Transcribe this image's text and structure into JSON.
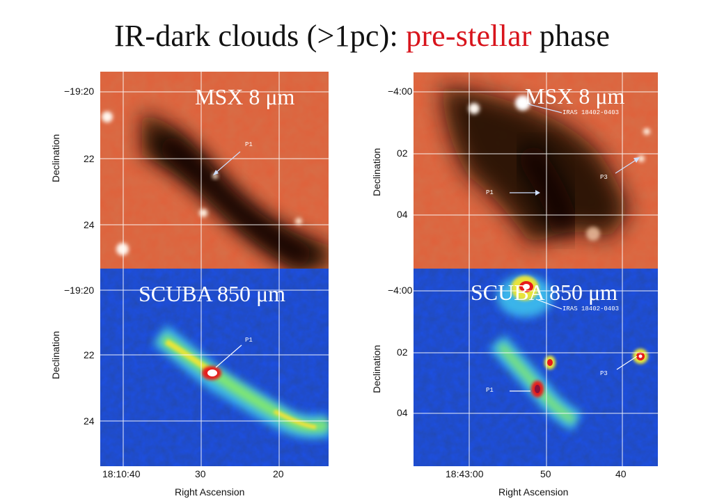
{
  "title": {
    "main": "IR-dark clouds (>1pc): ",
    "highlight": "pre-stellar",
    "tail": " phase"
  },
  "colors": {
    "title_highlight": "#d8141c",
    "ir_base": "#e0603a",
    "ir_dark": "#1a0800",
    "submm_base": "#1c4fe6",
    "submm_dark": "#05103a",
    "grid": "#ffffff"
  },
  "left": {
    "y_axis_label": "Declination",
    "y_ticks_top": [
      "−19:20",
      "22",
      "24"
    ],
    "y_ticks_bottom": [
      "−19:20",
      "22",
      "24"
    ],
    "x_ticks": [
      "18:10:40",
      "30",
      "20"
    ],
    "x_axis_label": "Right Ascension",
    "top_band": "MSX  8 μm",
    "bottom_band": "SCUBA  850 μm",
    "annotations": {
      "p1_top": "P1",
      "p1_bottom": "P1"
    }
  },
  "right": {
    "y_axis_label": "Declination",
    "y_ticks_top": [
      "−4:00",
      "02",
      "04"
    ],
    "y_ticks_bottom": [
      "−4:00",
      "02",
      "04"
    ],
    "x_ticks": [
      "18:43:00",
      "50",
      "40"
    ],
    "x_axis_label": "Right Ascension",
    "top_band": "MSX  8 μm",
    "bottom_band": "SCUBA  850 μm",
    "annotations": {
      "iras_top": "IRAS 18402-0403",
      "iras_bottom": "IRAS 18402-0403",
      "p1_top": "P1",
      "p1_bottom": "P1",
      "p3_top": "P3",
      "p3_bottom": "P3"
    }
  }
}
